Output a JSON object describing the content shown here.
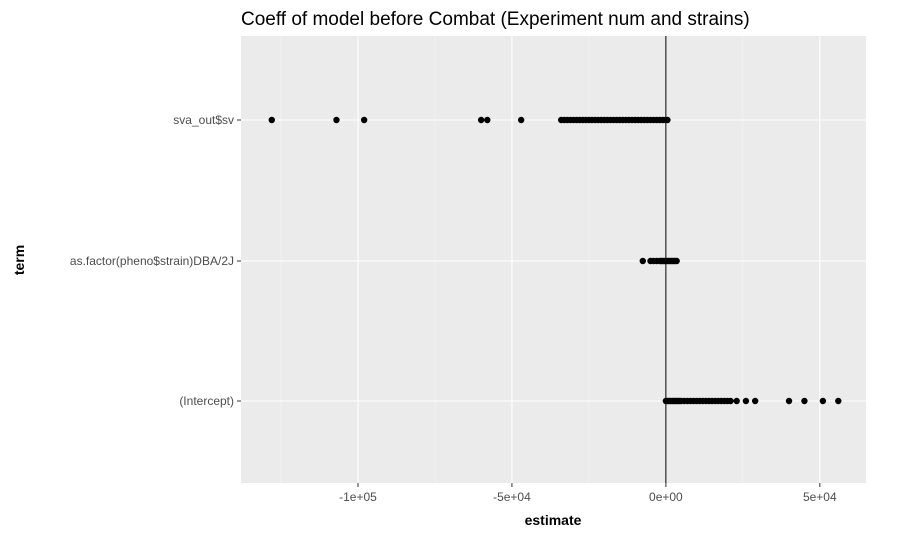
{
  "chart_data": {
    "type": "scatter",
    "title": "Coeff of model before Combat (Experiment num and strains)",
    "xlabel": "estimate",
    "ylabel": "term",
    "xlim": [
      -138000,
      65000
    ],
    "x_ticks": [
      {
        "value": -100000,
        "label": "-1e+05"
      },
      {
        "value": -50000,
        "label": "-5e+04"
      },
      {
        "value": 0,
        "label": "0e+00"
      },
      {
        "value": 50000,
        "label": "5e+04"
      }
    ],
    "categories": [
      "sva_out$sv",
      "as.factor(pheno$strain)DBA/2J",
      "(Intercept)"
    ],
    "reference_line_x": 0,
    "grid": true,
    "background": "#ebebeb",
    "grid_color": "#ffffff",
    "point_color": "#000000",
    "series": [
      {
        "term": "sva_out$sv",
        "x": [
          -128000,
          -107000,
          -98000,
          -60000,
          -58000,
          -47000,
          -34000,
          -33000,
          -32000,
          -31000,
          -30000,
          -29000,
          -28000,
          -27000,
          -26000,
          -25000,
          -24000,
          -23000,
          -22000,
          -21000,
          -20000,
          -19000,
          -18000,
          -17000,
          -16000,
          -15000,
          -14000,
          -13000,
          -12000,
          -11000,
          -10000,
          -9000,
          -8000,
          -7000,
          -6000,
          -5000,
          -4000,
          -3000,
          -2000,
          -1000,
          0,
          500
        ]
      },
      {
        "term": "as.factor(pheno$strain)DBA/2J",
        "x": [
          -7500,
          -5000,
          -4000,
          -3000,
          -2000,
          -1500,
          -1000,
          -500,
          0,
          500,
          1000,
          1500,
          2000,
          2500,
          3000,
          3500
        ]
      },
      {
        "term": "(Intercept)",
        "x": [
          0,
          500,
          1000,
          1500,
          2000,
          2500,
          3000,
          3500,
          4000,
          4500,
          5000,
          6000,
          7000,
          8000,
          9000,
          10000,
          11000,
          12000,
          13000,
          14000,
          15000,
          16000,
          17000,
          18000,
          19000,
          20000,
          21000,
          23000,
          26000,
          29000,
          40000,
          45000,
          51000,
          56000
        ]
      }
    ]
  }
}
